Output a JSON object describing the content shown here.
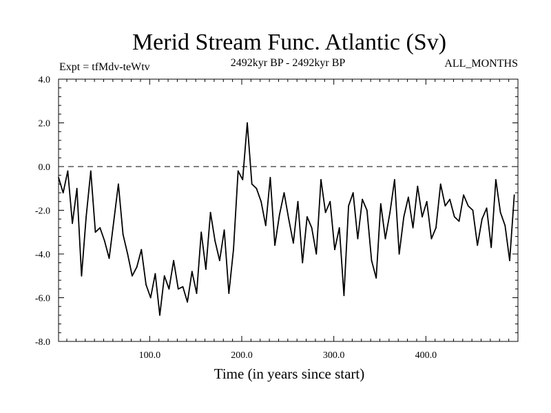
{
  "chart_data": {
    "type": "line",
    "title": "Merid Stream Func. Atlantic (Sv)",
    "subtitle_left": "Expt = tfMdv-teWtv",
    "subtitle_center": "2492kyr BP - 2492kyr BP",
    "subtitle_right": "ALL_MONTHS",
    "xlabel": "Time (in years since start)",
    "ylabel": "",
    "xlim": [
      1,
      500
    ],
    "ylim": [
      -8.0,
      4.0
    ],
    "xticks": [
      100,
      200,
      300,
      400
    ],
    "xtick_labels": [
      "100.0",
      "200.0",
      "300.0",
      "400.0"
    ],
    "yticks": [
      4,
      2,
      0,
      -2,
      -4,
      -6,
      -8
    ],
    "ytick_labels": [
      "4.0",
      "2.0",
      "0.0",
      "-2.0",
      "-4.0",
      "-6.0",
      "-8.0"
    ],
    "reference_line": {
      "y": 0.0,
      "style": "dashed"
    },
    "series": [
      {
        "name": "Merid Stream Func. Atlantic",
        "x_start": 1,
        "x_step": 5,
        "values": [
          -0.5,
          -1.2,
          -0.2,
          -2.6,
          -1.0,
          -5.0,
          -2.3,
          -0.2,
          -3.0,
          -2.8,
          -3.4,
          -4.2,
          -2.5,
          -0.8,
          -3.1,
          -4.0,
          -5.0,
          -4.6,
          -3.8,
          -5.4,
          -6.0,
          -4.9,
          -6.8,
          -5.0,
          -5.6,
          -4.3,
          -5.6,
          -5.5,
          -6.2,
          -4.8,
          -5.8,
          -3.0,
          -4.7,
          -2.1,
          -3.4,
          -4.3,
          -2.9,
          -5.8,
          -3.8,
          -0.2,
          -0.6,
          2.0,
          -0.8,
          -1.0,
          -1.6,
          -2.7,
          -0.5,
          -3.6,
          -2.2,
          -1.2,
          -2.4,
          -3.5,
          -1.6,
          -4.4,
          -2.3,
          -2.8,
          -4.0,
          -0.6,
          -2.1,
          -1.6,
          -3.8,
          -2.8,
          -5.9,
          -1.8,
          -1.2,
          -3.3,
          -1.5,
          -2.0,
          -4.3,
          -5.1,
          -1.7,
          -3.3,
          -2.1,
          -0.6,
          -4.0,
          -2.3,
          -1.4,
          -2.8,
          -0.9,
          -2.3,
          -1.6,
          -3.3,
          -2.8,
          -0.8,
          -1.8,
          -1.5,
          -2.3,
          -2.5,
          -1.3,
          -1.8,
          -2.0,
          -3.6,
          -2.4,
          -1.9,
          -3.7,
          -0.6,
          -2.1,
          -2.7,
          -4.3,
          -1.3
        ]
      }
    ]
  }
}
